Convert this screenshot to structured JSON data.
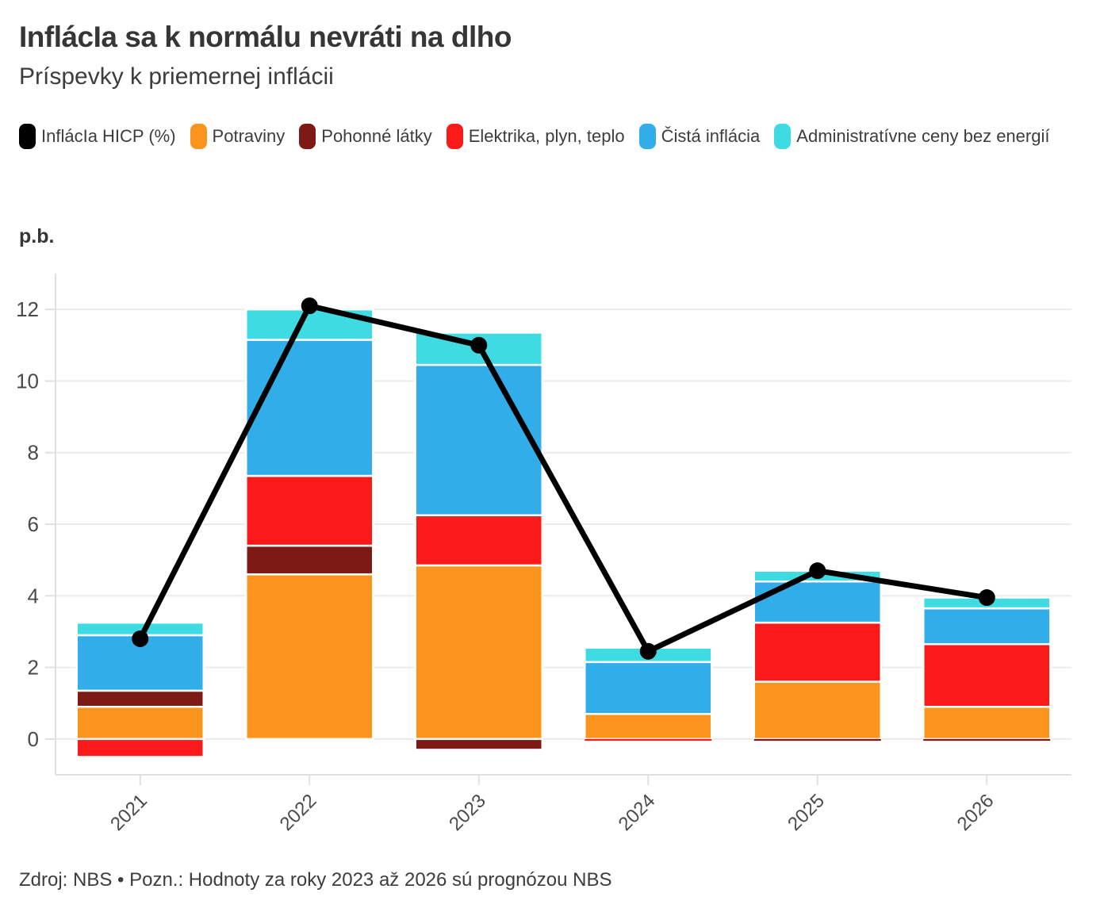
{
  "header": {
    "title": "InflácIa sa k normálu nevráti na dlho",
    "subtitle": "Príspevky k priemernej inflácii"
  },
  "footer": {
    "source_note": "Zdroj: NBS • Pozn.: Hodnoty za roky 2023 až 2026 sú prognózou NBS"
  },
  "chart_data": {
    "type": "bar",
    "variant": "stacked-bars-with-line-overlay",
    "title": "InflácIa sa k normálu nevráti na dlho",
    "subtitle": "Príspevky k priemernej inflácii",
    "ylabel": "p.b.",
    "xlabel": "",
    "categories": [
      "2021",
      "2022",
      "2023",
      "2024",
      "2025",
      "2026"
    ],
    "series": [
      {
        "name": "Potraviny",
        "color": "#FB941C",
        "values": [
          0.9,
          4.6,
          4.85,
          0.7,
          1.6,
          0.9
        ]
      },
      {
        "name": "Pohonné látky",
        "color": "#7E1A15",
        "values": [
          0.45,
          0.8,
          -0.3,
          0,
          -0.05,
          -0.05
        ]
      },
      {
        "name": "Elektrika, plyn, teplo",
        "color": "#FB1A1A",
        "values": [
          -0.5,
          1.95,
          1.4,
          -0.05,
          1.65,
          1.75
        ]
      },
      {
        "name": "Čistá inflácia",
        "color": "#31ADE9",
        "values": [
          1.55,
          3.8,
          4.2,
          1.45,
          1.15,
          1.0
        ]
      },
      {
        "name": "Administratívne ceny bez energií",
        "color": "#3EDBE3",
        "values": [
          0.35,
          0.85,
          0.9,
          0.4,
          0.3,
          0.3
        ]
      }
    ],
    "line_series": {
      "name": "InflácIa HICP (%)",
      "color": "#000000",
      "values": [
        2.8,
        12.1,
        11.0,
        2.45,
        4.7,
        3.95
      ]
    },
    "yticks": [
      0,
      2,
      4,
      6,
      8,
      10,
      12
    ],
    "ylim": [
      -1,
      13
    ],
    "grid": true,
    "legend_position": "top",
    "colors": {
      "grid": "#ECECEC",
      "axis": "#E0E0E0",
      "tick_text": "#4A4A4A",
      "background": "#FFFFFF"
    }
  }
}
